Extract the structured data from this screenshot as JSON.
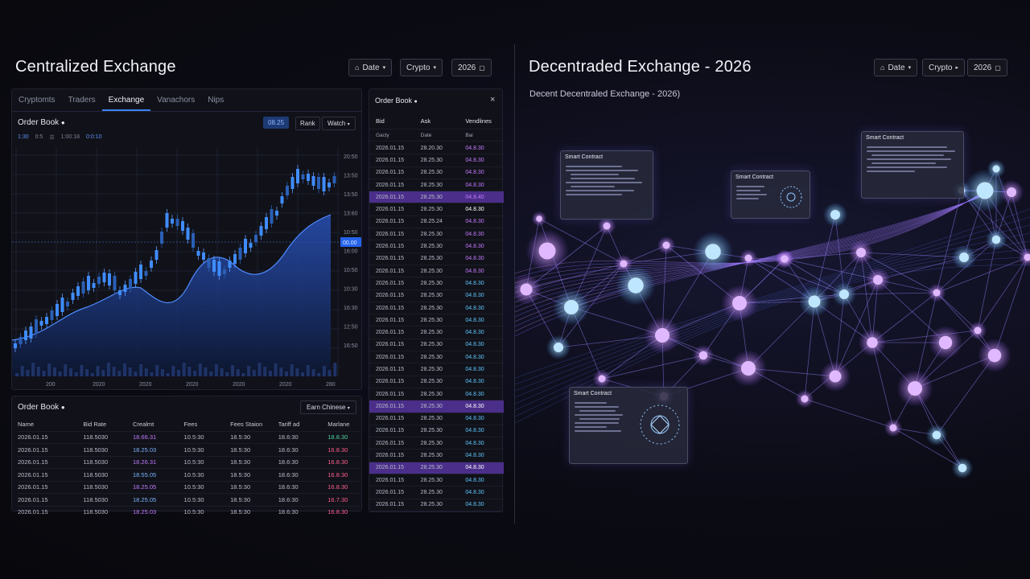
{
  "left": {
    "title": "Centralized Exchange",
    "controls": [
      {
        "label": "Date",
        "icon": "tag-icon"
      },
      {
        "label": "Crypto",
        "icon": "chevron-down-icon"
      },
      {
        "label": "2026",
        "icon": "calendar-icon"
      }
    ],
    "tabs": [
      "Cryptomts",
      "Traders",
      "Exchange",
      "Vanachors",
      "Nips"
    ],
    "active_tab": 2,
    "chart_panel": {
      "title": "Order Book",
      "buttons": [
        "08.25",
        "Rank",
        "Watch"
      ],
      "legend": [
        "1:30",
        "0:5",
        "1:00:18",
        "0:0:10"
      ],
      "price_tag": "00.00",
      "y_ticks": [
        "20:50",
        "13:50",
        "13:50",
        "13:60",
        "10:50",
        "16:00",
        "10:50",
        "10:30",
        "16:30",
        "12:50",
        "16:50"
      ],
      "x_ticks": [
        "200",
        "2020",
        "2020",
        "2020",
        "2020",
        "2020",
        "280"
      ]
    },
    "bottom_table": {
      "title": "Order Book",
      "filter": "Earn Chinese",
      "headers": [
        "Name",
        "Bid Rate",
        "Crealmt",
        "Fees",
        "Fees Staion",
        "Tariff ad",
        "Marlane"
      ],
      "rows": [
        [
          "2026.01.15",
          "118.5030",
          "18.66.31",
          "10.5:30",
          "18.5:30",
          "18.6:30",
          "18.8.30"
        ],
        [
          "2026.01.15",
          "118.5030",
          "18.25.03",
          "10.5:30",
          "18.5:30",
          "18.6:30",
          "16.8.30"
        ],
        [
          "2026.01.15",
          "118.5030",
          "18.26.31",
          "10.5:30",
          "18.5:30",
          "18.6:30",
          "16.8.30"
        ],
        [
          "2026.01.15",
          "118.5030",
          "18.55.05",
          "10.5:30",
          "18.5:30",
          "18.6:30",
          "16.8.30"
        ],
        [
          "2026.01.15",
          "118.5030",
          "18.25.05",
          "10.5:30",
          "18.5:30",
          "18.6:30",
          "16.8.30"
        ],
        [
          "2026.01.15",
          "118.5030",
          "18.25.05",
          "10.5:30",
          "18.5:30",
          "18.6:30",
          "16.7.30"
        ],
        [
          "2026.01.15",
          "118.5030",
          "18.25.03",
          "10.5:30",
          "18.5:30",
          "18.6:30",
          "16.8.30"
        ]
      ]
    },
    "order_book": {
      "title": "Order Book",
      "headers": [
        "Bid",
        "Ask",
        "Vendlines"
      ],
      "subheaders": [
        "Gacly",
        "Date",
        "Bai"
      ],
      "rows": [
        [
          "2026.01.15",
          "28.20.30",
          "04.8.30"
        ],
        [
          "2026.01.15",
          "28.25.30",
          "04.8.30"
        ],
        [
          "2026.01.15",
          "28.25.30",
          "04.8.30"
        ],
        [
          "2026.01.15",
          "28.25.30",
          "04.8.30"
        ],
        [
          "2026.01.15",
          "28.25.30",
          "04.8.40"
        ],
        [
          "2026.01.15",
          "28.25.30",
          "04.8.30"
        ],
        [
          "2026.01.15",
          "28.25.24",
          "04.8.30"
        ],
        [
          "2026.01.15",
          "28.25.30",
          "04.8.30"
        ],
        [
          "2026.01.15",
          "28.25.30",
          "04.8.30"
        ],
        [
          "2026.01.15",
          "28.25.30",
          "04.8.30"
        ],
        [
          "2026.01.15",
          "28.25.30",
          "04.8.30"
        ],
        [
          "2026.01.15",
          "28.25.30",
          "04.8.30"
        ],
        [
          "2026.01.15",
          "28.25.30",
          "04.8.30"
        ],
        [
          "2026.01.15",
          "28.25.30",
          "04.8.30"
        ],
        [
          "2026.01.15",
          "28.25.30",
          "04.8.30"
        ],
        [
          "2026.01.15",
          "28.25.30",
          "04.8.30"
        ],
        [
          "2026.01.15",
          "28.25.30",
          "04.8.30"
        ],
        [
          "2026.01.15",
          "28.25.30",
          "04.8.30"
        ],
        [
          "2026.01.15",
          "28.25.30",
          "04.8.30"
        ],
        [
          "2026.01.15",
          "28.25.30",
          "04.8.30"
        ],
        [
          "2026.01.15",
          "28.25.30",
          "04.8.30"
        ],
        [
          "2026.01.15",
          "28.25.30",
          "04.8.30"
        ],
        [
          "2026.01.15",
          "28.25.30",
          "04.8.30"
        ],
        [
          "2026.01.15",
          "28.25.30",
          "04.8.30"
        ],
        [
          "2026.01.15",
          "28.25.30",
          "04.8.30"
        ],
        [
          "2026.01.15",
          "28.25.30",
          "04.8.30"
        ],
        [
          "2026.01.15",
          "28.25.30",
          "04.8.30"
        ],
        [
          "2026.01.15",
          "28.25.30",
          "04.8.30"
        ],
        [
          "2026.01.15",
          "28.25.30",
          "04.8.30"
        ],
        [
          "2026.01.15",
          "28.25.30",
          "04.8.30"
        ]
      ],
      "highlight_rows": [
        4,
        21,
        26
      ],
      "ask_colors": [
        "#c479ff",
        "#c479ff",
        "#c479ff",
        "#c479ff",
        "#c479ff",
        "#ffffff",
        "#c479ff",
        "#c479ff",
        "#c479ff",
        "#c479ff",
        "#c479ff",
        "#5fc7ff",
        "#5fc7ff",
        "#5fc7ff",
        "#5fc7ff",
        "#5fc7ff",
        "#5fc7ff",
        "#5fc7ff",
        "#5fc7ff",
        "#5fc7ff",
        "#5fc7ff",
        "#ffffff",
        "#5fc7ff",
        "#5fc7ff",
        "#5fc7ff",
        "#5fc7ff",
        "#ffffff",
        "#5fc7ff",
        "#5fc7ff",
        "#5fc7ff"
      ]
    }
  },
  "right": {
    "title": "Decentraded Exchange - 2026",
    "subtitle": "Decent Decentraled Exchange - 2026)",
    "controls": [
      {
        "label": "Date",
        "icon": "tag-icon"
      },
      {
        "label": "Crypto",
        "icon": "chevron-down-icon"
      },
      {
        "label": "2026",
        "icon": "calendar-icon"
      }
    ],
    "cards": [
      {
        "title": "Smart Contract"
      },
      {
        "title": "Smart Contract"
      },
      {
        "title": "Smart Contract"
      },
      {
        "title": "Smart Contract"
      }
    ]
  },
  "colors": {
    "accent_blue": "#3b82f6",
    "purple": "#a86cff",
    "cyan": "#7cc8ff",
    "up": "#3f8cff",
    "down": "#2a5fb5"
  }
}
